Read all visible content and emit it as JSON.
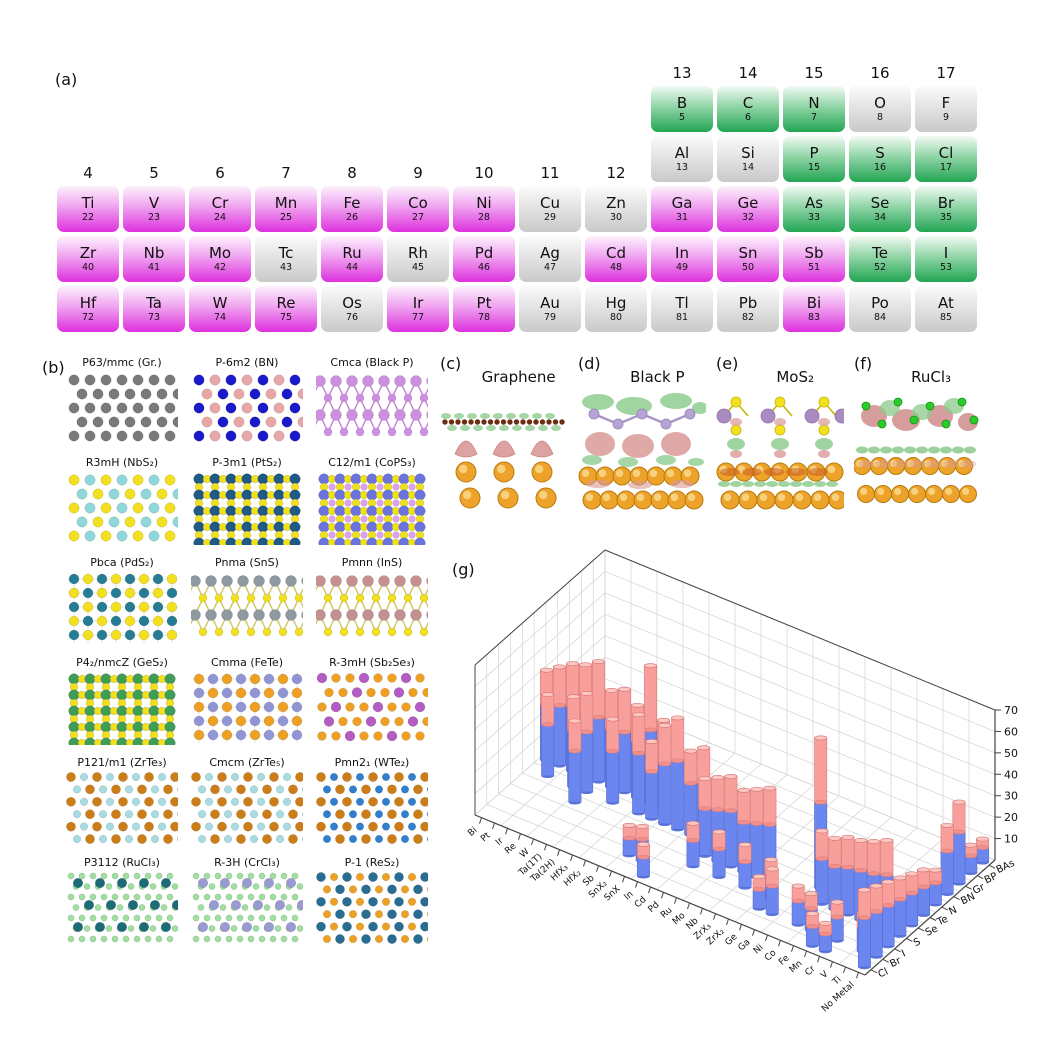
{
  "panels": {
    "a": "(a)",
    "b": "(b)",
    "g": "(g)"
  },
  "periodic_table": {
    "group_headers_left": [
      "4",
      "5",
      "6",
      "7",
      "8",
      "9",
      "10",
      "11",
      "12"
    ],
    "group_headers_right": [
      "13",
      "14",
      "15",
      "16",
      "17"
    ],
    "colors": {
      "magenta": "#dd31dd",
      "green": "#22a553",
      "gray": "#c9c9c9"
    },
    "elements": [
      {
        "s": "B",
        "n": "5",
        "c": "g",
        "col": 10,
        "row": 2
      },
      {
        "s": "C",
        "n": "6",
        "c": "g",
        "col": 11,
        "row": 2
      },
      {
        "s": "N",
        "n": "7",
        "c": "g",
        "col": 12,
        "row": 2
      },
      {
        "s": "O",
        "n": "8",
        "c": "gy",
        "col": 13,
        "row": 2
      },
      {
        "s": "F",
        "n": "9",
        "c": "gy",
        "col": 14,
        "row": 2
      },
      {
        "s": "Al",
        "n": "13",
        "c": "gy",
        "col": 10,
        "row": 3
      },
      {
        "s": "Si",
        "n": "14",
        "c": "gy",
        "col": 11,
        "row": 3
      },
      {
        "s": "P",
        "n": "15",
        "c": "g",
        "col": 12,
        "row": 3
      },
      {
        "s": "S",
        "n": "16",
        "c": "g",
        "col": 13,
        "row": 3
      },
      {
        "s": "Cl",
        "n": "17",
        "c": "g",
        "col": 14,
        "row": 3
      },
      {
        "s": "Ti",
        "n": "22",
        "c": "m",
        "col": 1,
        "row": 4
      },
      {
        "s": "V",
        "n": "23",
        "c": "m",
        "col": 2,
        "row": 4
      },
      {
        "s": "Cr",
        "n": "24",
        "c": "m",
        "col": 3,
        "row": 4
      },
      {
        "s": "Mn",
        "n": "25",
        "c": "m",
        "col": 4,
        "row": 4
      },
      {
        "s": "Fe",
        "n": "26",
        "c": "m",
        "col": 5,
        "row": 4
      },
      {
        "s": "Co",
        "n": "27",
        "c": "m",
        "col": 6,
        "row": 4
      },
      {
        "s": "Ni",
        "n": "28",
        "c": "m",
        "col": 7,
        "row": 4
      },
      {
        "s": "Cu",
        "n": "29",
        "c": "gy",
        "col": 8,
        "row": 4
      },
      {
        "s": "Zn",
        "n": "30",
        "c": "gy",
        "col": 9,
        "row": 4
      },
      {
        "s": "Ga",
        "n": "31",
        "c": "m",
        "col": 10,
        "row": 4
      },
      {
        "s": "Ge",
        "n": "32",
        "c": "m",
        "col": 11,
        "row": 4
      },
      {
        "s": "As",
        "n": "33",
        "c": "g",
        "col": 12,
        "row": 4
      },
      {
        "s": "Se",
        "n": "34",
        "c": "g",
        "col": 13,
        "row": 4
      },
      {
        "s": "Br",
        "n": "35",
        "c": "g",
        "col": 14,
        "row": 4
      },
      {
        "s": "Zr",
        "n": "40",
        "c": "m",
        "col": 1,
        "row": 5
      },
      {
        "s": "Nb",
        "n": "41",
        "c": "m",
        "col": 2,
        "row": 5
      },
      {
        "s": "Mo",
        "n": "42",
        "c": "m",
        "col": 3,
        "row": 5
      },
      {
        "s": "Tc",
        "n": "43",
        "c": "gy",
        "col": 4,
        "row": 5
      },
      {
        "s": "Ru",
        "n": "44",
        "c": "m",
        "col": 5,
        "row": 5
      },
      {
        "s": "Rh",
        "n": "45",
        "c": "gy",
        "col": 6,
        "row": 5
      },
      {
        "s": "Pd",
        "n": "46",
        "c": "m",
        "col": 7,
        "row": 5
      },
      {
        "s": "Ag",
        "n": "47",
        "c": "gy",
        "col": 8,
        "row": 5
      },
      {
        "s": "Cd",
        "n": "48",
        "c": "m",
        "col": 9,
        "row": 5
      },
      {
        "s": "In",
        "n": "49",
        "c": "m",
        "col": 10,
        "row": 5
      },
      {
        "s": "Sn",
        "n": "50",
        "c": "m",
        "col": 11,
        "row": 5
      },
      {
        "s": "Sb",
        "n": "51",
        "c": "m",
        "col": 12,
        "row": 5
      },
      {
        "s": "Te",
        "n": "52",
        "c": "g",
        "col": 13,
        "row": 5
      },
      {
        "s": "I",
        "n": "53",
        "c": "g",
        "col": 14,
        "row": 5
      },
      {
        "s": "Hf",
        "n": "72",
        "c": "m",
        "col": 1,
        "row": 6
      },
      {
        "s": "Ta",
        "n": "73",
        "c": "m",
        "col": 2,
        "row": 6
      },
      {
        "s": "W",
        "n": "74",
        "c": "m",
        "col": 3,
        "row": 6
      },
      {
        "s": "Re",
        "n": "75",
        "c": "m",
        "col": 4,
        "row": 6
      },
      {
        "s": "Os",
        "n": "76",
        "c": "gy",
        "col": 5,
        "row": 6
      },
      {
        "s": "Ir",
        "n": "77",
        "c": "m",
        "col": 6,
        "row": 6
      },
      {
        "s": "Pt",
        "n": "78",
        "c": "m",
        "col": 7,
        "row": 6
      },
      {
        "s": "Au",
        "n": "79",
        "c": "gy",
        "col": 8,
        "row": 6
      },
      {
        "s": "Hg",
        "n": "80",
        "c": "gy",
        "col": 9,
        "row": 6
      },
      {
        "s": "Tl",
        "n": "81",
        "c": "gy",
        "col": 10,
        "row": 6
      },
      {
        "s": "Pb",
        "n": "82",
        "c": "gy",
        "col": 11,
        "row": 6
      },
      {
        "s": "Bi",
        "n": "83",
        "c": "m",
        "col": 12,
        "row": 6
      },
      {
        "s": "Po",
        "n": "84",
        "c": "gy",
        "col": 13,
        "row": 6
      },
      {
        "s": "At",
        "n": "85",
        "c": "gy",
        "col": 14,
        "row": 6
      }
    ]
  },
  "structures": {
    "items": [
      {
        "label": "P63/mmc (Gr.)",
        "mode": "honeycomb",
        "colors": [
          "#7a7a7a"
        ]
      },
      {
        "label": "P-6m2 (BN)",
        "mode": "honeycomb",
        "colors": [
          "#1a1acc",
          "#e8a7a7"
        ]
      },
      {
        "label": "Cmca (Black P)",
        "mode": "diamond",
        "colors": [
          "#cf8fe0",
          "#cf8fe0"
        ],
        "line": "#c27fd6"
      },
      {
        "label": "R3mH (NbS₂)",
        "mode": "honeycomb",
        "colors": [
          "#f2df1e",
          "#8fd8da"
        ]
      },
      {
        "label": "P-3m1 (PtS₂)",
        "mode": "grid",
        "colors": [
          "#1f5a86",
          "#f2df1e"
        ]
      },
      {
        "label": "C12/m1 (CoPS₃)",
        "mode": "grid",
        "colors": [
          "#6a74e0",
          "#f2df1e",
          "#e09fe8"
        ]
      },
      {
        "label": "Pbca (PdS₂)",
        "mode": "checker",
        "colors": [
          "#247d92",
          "#f2df1e"
        ]
      },
      {
        "label": "Pnma (SnS)",
        "mode": "diamond",
        "colors": [
          "#8d9aa0",
          "#f2df1e"
        ],
        "line": "#cfc25a"
      },
      {
        "label": "Pmnn (InS)",
        "mode": "diamond",
        "colors": [
          "#c59090",
          "#f2df1e"
        ],
        "line": "#cfc25a"
      },
      {
        "label": "P4₂/nmcZ (GeS₂)",
        "mode": "grid",
        "colors": [
          "#3f9d57",
          "#f2df1e"
        ]
      },
      {
        "label": "Cmma (FeTe)",
        "mode": "checker",
        "colors": [
          "#efa023",
          "#9195d6"
        ]
      },
      {
        "label": "R-3mH (Sb₂Se₃)",
        "mode": "tri",
        "colors": [
          "#efa023",
          "#b25cc4"
        ]
      },
      {
        "label": "P121/m1 (ZrTe₃)",
        "mode": "dense",
        "colors": [
          "#cc7d17",
          "#a7dde2"
        ]
      },
      {
        "label": "Cmcm (ZrTe₅)",
        "mode": "dense",
        "colors": [
          "#cc7d17",
          "#a7dde2"
        ]
      },
      {
        "label": "Pmn2₁ (WTe₂)",
        "mode": "dense",
        "colors": [
          "#cc7d17",
          "#2e7fd0"
        ]
      },
      {
        "label": "P3112 (RuCl₃)",
        "mode": "kagome",
        "colors": [
          "#1d6b76",
          "#9fdf9f"
        ]
      },
      {
        "label": "R-3H (CrCl₃)",
        "mode": "kagome",
        "colors": [
          "#9a9ad2",
          "#9fdf9f"
        ]
      },
      {
        "label": "P-1 (ReS₂)",
        "mode": "dense",
        "colors": [
          "#2a6d92",
          "#efa023"
        ]
      }
    ]
  },
  "isosurfaces": {
    "items": [
      {
        "letter": "(c)",
        "title": "Graphene",
        "variant": "graphene"
      },
      {
        "letter": "(d)",
        "title": "Black P",
        "variant": "blackp"
      },
      {
        "letter": "(e)",
        "title": "MoS₂",
        "variant": "mos2"
      },
      {
        "letter": "(f)",
        "title": "RuCl₃",
        "variant": "rucl3"
      }
    ]
  },
  "chart_data": {
    "type": "3d-stacked-cylinder-bar",
    "x_categories": [
      "Bi",
      "Pt",
      "Ir",
      "Re",
      "W",
      "Ta(1T)",
      "Ta(2H)",
      "HfX₃",
      "HfX₂",
      "Sb",
      "SnX₂",
      "SnX",
      "In",
      "Cd",
      "Pd",
      "Ru",
      "Mo",
      "Nb",
      "ZrX₃",
      "ZrX₂",
      "Ge",
      "Ga",
      "Ni",
      "Co",
      "Fe",
      "Mn",
      "Cr",
      "V",
      "Ti",
      "No Metal"
    ],
    "depth_categories": [
      "BAs",
      "BP",
      "Gr",
      "BN",
      "N",
      "Te",
      "Se",
      "S",
      "I",
      "Br",
      "Cl"
    ],
    "z_ticks": [
      10,
      20,
      30,
      40,
      50,
      60,
      70
    ],
    "zlim": [
      0,
      70
    ],
    "colors": {
      "blue": "#6b86ef",
      "pink": "#f89e9b"
    },
    "bars": [
      [
        "Bi",
        "Te",
        26,
        16
      ],
      [
        "Pt",
        "Te",
        28,
        18
      ],
      [
        "Pt",
        "Se",
        24,
        14
      ],
      [
        "Ir",
        "Te",
        30,
        20
      ],
      [
        "Re",
        "Te",
        30,
        22
      ],
      [
        "Re",
        "Se",
        26,
        16
      ],
      [
        "W",
        "Te",
        30,
        26
      ],
      [
        "W",
        "Se",
        28,
        18
      ],
      [
        "W",
        "S",
        24,
        14
      ],
      [
        "Ta(1T)",
        "Te",
        27,
        18
      ],
      [
        "Ta(2H)",
        "Te",
        28,
        20
      ],
      [
        "Ta(2H)",
        "Se",
        24,
        15
      ],
      [
        "HfX₃",
        "Te",
        26,
        17
      ],
      [
        "HfX₂",
        "Te",
        34,
        30
      ],
      [
        "HfX₂",
        "Se",
        28,
        18
      ],
      [
        "Sb",
        "Te",
        25,
        16
      ],
      [
        "Sb",
        "Se",
        22,
        14
      ],
      [
        "SnX₂",
        "Se",
        28,
        18
      ],
      [
        "SnX₂",
        "Br",
        8,
        6
      ],
      [
        "SnX",
        "Se",
        32,
        20
      ],
      [
        "SnX",
        "Br",
        10,
        6
      ],
      [
        "In",
        "Se",
        24,
        15
      ],
      [
        "In",
        "Cl",
        9,
        6
      ],
      [
        "Cd",
        "Se",
        26,
        17
      ],
      [
        "Pd",
        "S",
        22,
        14
      ],
      [
        "Pd",
        "I",
        12,
        8
      ],
      [
        "Ru",
        "S",
        24,
        15
      ],
      [
        "Mo",
        "S",
        26,
        16
      ],
      [
        "Mo",
        "I",
        13,
        8
      ],
      [
        "Nb",
        "S",
        23,
        15
      ],
      [
        "ZrX₃",
        "S",
        25,
        16
      ],
      [
        "ZrX₃",
        "I",
        12,
        8
      ],
      [
        "ZrX₂",
        "S",
        27,
        17
      ],
      [
        "Ge",
        "I",
        11,
        7
      ],
      [
        "Ge",
        "Br",
        9,
        6
      ],
      [
        "Ga",
        "Br",
        13,
        8
      ],
      [
        "Ni",
        "Se",
        40,
        30
      ],
      [
        "Co",
        "S",
        21,
        13
      ],
      [
        "Co",
        "Br",
        11,
        7
      ],
      [
        "Fe",
        "S",
        20,
        13
      ],
      [
        "Fe",
        "Br",
        10,
        7
      ],
      [
        "Mn",
        "S",
        22,
        14
      ],
      [
        "Mn",
        "Cl",
        9,
        6
      ],
      [
        "Cr",
        "S",
        23,
        14
      ],
      [
        "Cr",
        "Br",
        11,
        7
      ],
      [
        "Cr",
        "Cl",
        8,
        5
      ],
      [
        "V",
        "S",
        24,
        15
      ],
      [
        "Ti",
        "S",
        26,
        16
      ],
      [
        "Ti",
        "Br",
        11,
        7
      ],
      [
        "No Metal",
        "BAs",
        7,
        4
      ],
      [
        "No Metal",
        "BP",
        8,
        5
      ],
      [
        "No Metal",
        "Gr",
        24,
        14
      ],
      [
        "No Metal",
        "BN",
        20,
        12
      ],
      [
        "No Metal",
        "N",
        10,
        6
      ],
      [
        "No Metal",
        "Te",
        13,
        8
      ],
      [
        "No Metal",
        "Se",
        15,
        9
      ],
      [
        "No Metal",
        "S",
        17,
        10
      ],
      [
        "No Metal",
        "I",
        19,
        11
      ],
      [
        "No Metal",
        "Br",
        21,
        12
      ],
      [
        "No Metal",
        "Cl",
        23,
        13
      ]
    ]
  }
}
